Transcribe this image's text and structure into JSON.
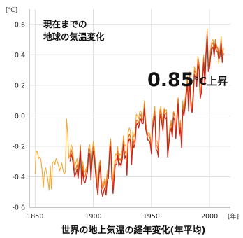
{
  "chart_data": {
    "type": "line",
    "title_lines": [
      "現在までの",
      "地球の気温変化"
    ],
    "y_unit": "[℃]",
    "x_unit": "[年]",
    "caption": "世界の地上気温の経年変化(年平均)",
    "annotation_value": "0.85",
    "annotation_suffix": "℃上昇",
    "xlim": [
      1845,
      2018
    ],
    "ylim": [
      -0.6,
      0.7
    ],
    "x_ticks": [
      1850,
      1900,
      1950,
      2000
    ],
    "y_ticks": [
      -0.6,
      -0.4,
      -0.2,
      0.0,
      0.2,
      0.4,
      0.6
    ],
    "y_tick_labels": [
      "-0.6",
      "-0.4",
      "-0.2",
      "0.0",
      "0.2",
      "0.4",
      "0.6"
    ],
    "grid": true,
    "colors": {
      "series_a": "#f3a630",
      "series_b": "#e8721c",
      "series_c": "#c8281e",
      "grid": "#d9d9d9",
      "axis": "#888888"
    },
    "series": [
      {
        "x": [
          1850,
          1851,
          1852,
          1853,
          1854,
          1855,
          1856,
          1857,
          1858,
          1859,
          1860,
          1861,
          1862,
          1863,
          1864,
          1865,
          1866,
          1867,
          1868,
          1869,
          1870,
          1871,
          1872,
          1873,
          1874,
          1875,
          1876,
          1877,
          1878,
          1879,
          1880,
          1881,
          1882,
          1883,
          1884,
          1885,
          1886,
          1887,
          1888,
          1889,
          1890,
          1891,
          1892,
          1893,
          1894,
          1895,
          1896,
          1897,
          1898,
          1899,
          1900,
          1901,
          1902,
          1903,
          1904,
          1905,
          1906,
          1907,
          1908,
          1909,
          1910,
          1911,
          1912,
          1913,
          1914,
          1915,
          1916,
          1917,
          1918,
          1919,
          1920,
          1921,
          1922,
          1923,
          1924,
          1925,
          1926,
          1927,
          1928,
          1929,
          1930,
          1931,
          1932,
          1933,
          1934,
          1935,
          1936,
          1937,
          1938,
          1939,
          1940,
          1941,
          1942,
          1943,
          1944,
          1945,
          1946,
          1947,
          1948,
          1949,
          1950,
          1951,
          1952,
          1953,
          1954,
          1955,
          1956,
          1957,
          1958,
          1959,
          1960,
          1961,
          1962,
          1963,
          1964,
          1965,
          1966,
          1967,
          1968,
          1969,
          1970,
          1971,
          1972,
          1973,
          1974,
          1975,
          1976,
          1977,
          1978,
          1979,
          1980,
          1981,
          1982,
          1983,
          1984,
          1985,
          1986,
          1987,
          1988,
          1989,
          1990,
          1991,
          1992,
          1993,
          1994,
          1995,
          1996,
          1997,
          1998,
          1999,
          2000,
          2001,
          2002,
          2003,
          2004,
          2005,
          2006,
          2007,
          2008,
          2009,
          2010,
          2011,
          2012
        ],
        "values": [
          -0.38,
          -0.23,
          -0.24,
          -0.28,
          -0.27,
          -0.29,
          -0.36,
          -0.47,
          -0.37,
          -0.34,
          -0.38,
          -0.42,
          -0.49,
          -0.33,
          -0.48,
          -0.31,
          -0.3,
          -0.32,
          -0.28,
          -0.3,
          -0.32,
          -0.36,
          -0.34,
          -0.31,
          -0.36,
          -0.38,
          -0.37,
          -0.02,
          -0.11,
          -0.28,
          -0.25,
          -0.19,
          -0.21,
          -0.28,
          -0.33,
          -0.31,
          -0.28,
          -0.34,
          -0.29,
          -0.19,
          -0.38,
          -0.3,
          -0.36,
          -0.37,
          -0.34,
          -0.32,
          -0.21,
          -0.19,
          -0.34,
          -0.24,
          -0.17,
          -0.22,
          -0.32,
          -0.38,
          -0.43,
          -0.32,
          -0.29,
          -0.42,
          -0.46,
          -0.44,
          -0.41,
          -0.45,
          -0.36,
          -0.36,
          -0.2,
          -0.15,
          -0.35,
          -0.42,
          -0.33,
          -0.25,
          -0.26,
          -0.2,
          -0.28,
          -0.25,
          -0.26,
          -0.22,
          -0.13,
          -0.2,
          -0.19,
          -0.32,
          -0.11,
          -0.08,
          -0.1,
          -0.25,
          -0.1,
          -0.14,
          -0.11,
          0.01,
          0.0,
          -0.02,
          0.03,
          0.03,
          0.0,
          0.0,
          0.1,
          -0.02,
          -0.1,
          -0.12,
          -0.11,
          -0.13,
          -0.2,
          -0.04,
          0.01,
          0.06,
          -0.16,
          -0.17,
          -0.21,
          0.03,
          0.06,
          0.0,
          -0.05,
          0.05,
          0.03,
          0.04,
          -0.22,
          -0.14,
          -0.06,
          -0.03,
          -0.09,
          0.03,
          0.01,
          -0.1,
          0.01,
          0.12,
          -0.07,
          -0.03,
          -0.15,
          0.1,
          0.05,
          0.11,
          0.17,
          0.26,
          0.08,
          0.29,
          0.1,
          0.07,
          0.17,
          0.32,
          0.3,
          0.25,
          0.39,
          0.35,
          0.16,
          0.2,
          0.28,
          0.4,
          0.25,
          0.43,
          0.57,
          0.35,
          0.35,
          0.44,
          0.49,
          0.5,
          0.44,
          0.47,
          0.47,
          0.42,
          0.34,
          0.44,
          0.52,
          0.4,
          0.45
        ],
        "color": "#f3a630",
        "width": 1.1
      },
      {
        "x": [
          1880,
          1881,
          1882,
          1883,
          1884,
          1885,
          1886,
          1887,
          1888,
          1889,
          1890,
          1891,
          1892,
          1893,
          1894,
          1895,
          1896,
          1897,
          1898,
          1899,
          1900,
          1901,
          1902,
          1903,
          1904,
          1905,
          1906,
          1907,
          1908,
          1909,
          1910,
          1911,
          1912,
          1913,
          1914,
          1915,
          1916,
          1917,
          1918,
          1919,
          1920,
          1921,
          1922,
          1923,
          1924,
          1925,
          1926,
          1927,
          1928,
          1929,
          1930,
          1931,
          1932,
          1933,
          1934,
          1935,
          1936,
          1937,
          1938,
          1939,
          1940,
          1941,
          1942,
          1943,
          1944,
          1945,
          1946,
          1947,
          1948,
          1949,
          1950,
          1951,
          1952,
          1953,
          1954,
          1955,
          1956,
          1957,
          1958,
          1959,
          1960,
          1961,
          1962,
          1963,
          1964,
          1965,
          1966,
          1967,
          1968,
          1969,
          1970,
          1971,
          1972,
          1973,
          1974,
          1975,
          1976,
          1977,
          1978,
          1979,
          1980,
          1981,
          1982,
          1983,
          1984,
          1985,
          1986,
          1987,
          1988,
          1989,
          1990,
          1991,
          1992,
          1993,
          1994,
          1995,
          1996,
          1997,
          1998,
          1999,
          2000,
          2001,
          2002,
          2003,
          2004,
          2005,
          2006,
          2007,
          2008,
          2009,
          2010,
          2011,
          2012
        ],
        "values": [
          -0.27,
          -0.22,
          -0.25,
          -0.31,
          -0.36,
          -0.35,
          -0.32,
          -0.37,
          -0.29,
          -0.2,
          -0.41,
          -0.33,
          -0.39,
          -0.4,
          -0.36,
          -0.34,
          -0.22,
          -0.22,
          -0.38,
          -0.27,
          -0.2,
          -0.25,
          -0.35,
          -0.42,
          -0.47,
          -0.35,
          -0.3,
          -0.45,
          -0.48,
          -0.46,
          -0.43,
          -0.48,
          -0.39,
          -0.38,
          -0.22,
          -0.17,
          -0.38,
          -0.47,
          -0.37,
          -0.29,
          -0.29,
          -0.23,
          -0.3,
          -0.28,
          -0.3,
          -0.25,
          -0.16,
          -0.25,
          -0.23,
          -0.36,
          -0.15,
          -0.12,
          -0.14,
          -0.29,
          -0.14,
          -0.18,
          -0.15,
          -0.03,
          -0.03,
          -0.05,
          -0.01,
          0.01,
          -0.03,
          -0.02,
          0.08,
          -0.05,
          -0.09,
          -0.13,
          -0.13,
          -0.15,
          -0.22,
          -0.06,
          -0.01,
          0.03,
          -0.19,
          -0.2,
          -0.24,
          0.0,
          0.04,
          -0.02,
          -0.07,
          0.04,
          0.01,
          0.02,
          -0.24,
          -0.16,
          -0.08,
          -0.05,
          -0.11,
          0.02,
          0.0,
          -0.12,
          0.0,
          0.11,
          -0.1,
          -0.05,
          -0.18,
          0.07,
          0.03,
          0.09,
          0.16,
          0.24,
          0.06,
          0.28,
          0.09,
          0.05,
          0.14,
          0.3,
          0.28,
          0.22,
          0.37,
          0.33,
          0.14,
          0.18,
          0.26,
          0.38,
          0.23,
          0.42,
          0.55,
          0.32,
          0.34,
          0.42,
          0.47,
          0.48,
          0.42,
          0.5,
          0.45,
          0.45,
          0.4,
          0.42,
          0.5,
          0.38,
          0.44
        ],
        "color": "#e8721c",
        "width": 1.2
      },
      {
        "x": [
          1880,
          1881,
          1882,
          1883,
          1884,
          1885,
          1886,
          1887,
          1888,
          1889,
          1890,
          1891,
          1892,
          1893,
          1894,
          1895,
          1896,
          1897,
          1898,
          1899,
          1900,
          1901,
          1902,
          1903,
          1904,
          1905,
          1906,
          1907,
          1908,
          1909,
          1910,
          1911,
          1912,
          1913,
          1914,
          1915,
          1916,
          1917,
          1918,
          1919,
          1920,
          1921,
          1922,
          1923,
          1924,
          1925,
          1926,
          1927,
          1928,
          1929,
          1930,
          1931,
          1932,
          1933,
          1934,
          1935,
          1936,
          1937,
          1938,
          1939,
          1940,
          1941,
          1942,
          1943,
          1944,
          1945,
          1946,
          1947,
          1948,
          1949,
          1950,
          1951,
          1952,
          1953,
          1954,
          1955,
          1956,
          1957,
          1958,
          1959,
          1960,
          1961,
          1962,
          1963,
          1964,
          1965,
          1966,
          1967,
          1968,
          1969,
          1970,
          1971,
          1972,
          1973,
          1974,
          1975,
          1976,
          1977,
          1978,
          1979,
          1980,
          1981,
          1982,
          1983,
          1984,
          1985,
          1986,
          1987,
          1988,
          1989,
          1990,
          1991,
          1992,
          1993,
          1994,
          1995,
          1996,
          1997,
          1998,
          1999,
          2000,
          2001,
          2002,
          2003,
          2004,
          2005,
          2006,
          2007,
          2008,
          2009,
          2010,
          2011,
          2012
        ],
        "values": [
          -0.3,
          -0.25,
          -0.28,
          -0.34,
          -0.4,
          -0.38,
          -0.35,
          -0.41,
          -0.32,
          -0.23,
          -0.45,
          -0.36,
          -0.43,
          -0.44,
          -0.4,
          -0.37,
          -0.25,
          -0.25,
          -0.42,
          -0.3,
          -0.23,
          -0.28,
          -0.38,
          -0.46,
          -0.52,
          -0.38,
          -0.33,
          -0.49,
          -0.53,
          -0.5,
          -0.47,
          -0.52,
          -0.43,
          -0.41,
          -0.25,
          -0.2,
          -0.41,
          -0.51,
          -0.41,
          -0.32,
          -0.32,
          -0.26,
          -0.33,
          -0.31,
          -0.33,
          -0.28,
          -0.19,
          -0.28,
          -0.26,
          -0.39,
          -0.18,
          -0.15,
          -0.17,
          -0.32,
          -0.17,
          -0.21,
          -0.18,
          -0.06,
          -0.05,
          -0.08,
          -0.04,
          -0.02,
          -0.05,
          -0.05,
          0.05,
          -0.08,
          -0.12,
          -0.16,
          -0.16,
          -0.18,
          -0.25,
          -0.09,
          -0.04,
          0.0,
          -0.22,
          -0.23,
          -0.27,
          -0.03,
          0.01,
          -0.05,
          -0.1,
          0.01,
          -0.02,
          -0.01,
          -0.27,
          -0.19,
          -0.11,
          -0.08,
          -0.14,
          -0.01,
          -0.03,
          -0.15,
          -0.03,
          0.08,
          -0.13,
          -0.08,
          -0.21,
          0.04,
          0.0,
          0.06,
          0.13,
          0.21,
          0.03,
          0.25,
          0.06,
          0.02,
          0.11,
          0.27,
          0.25,
          0.19,
          0.34,
          0.3,
          0.11,
          0.15,
          0.23,
          0.35,
          0.2,
          0.39,
          0.52,
          0.29,
          0.31,
          0.39,
          0.44,
          0.45,
          0.39,
          0.47,
          0.42,
          0.42,
          0.37,
          0.39,
          0.47,
          0.35,
          0.41
        ],
        "color": "#c8281e",
        "width": 1.3
      }
    ]
  }
}
